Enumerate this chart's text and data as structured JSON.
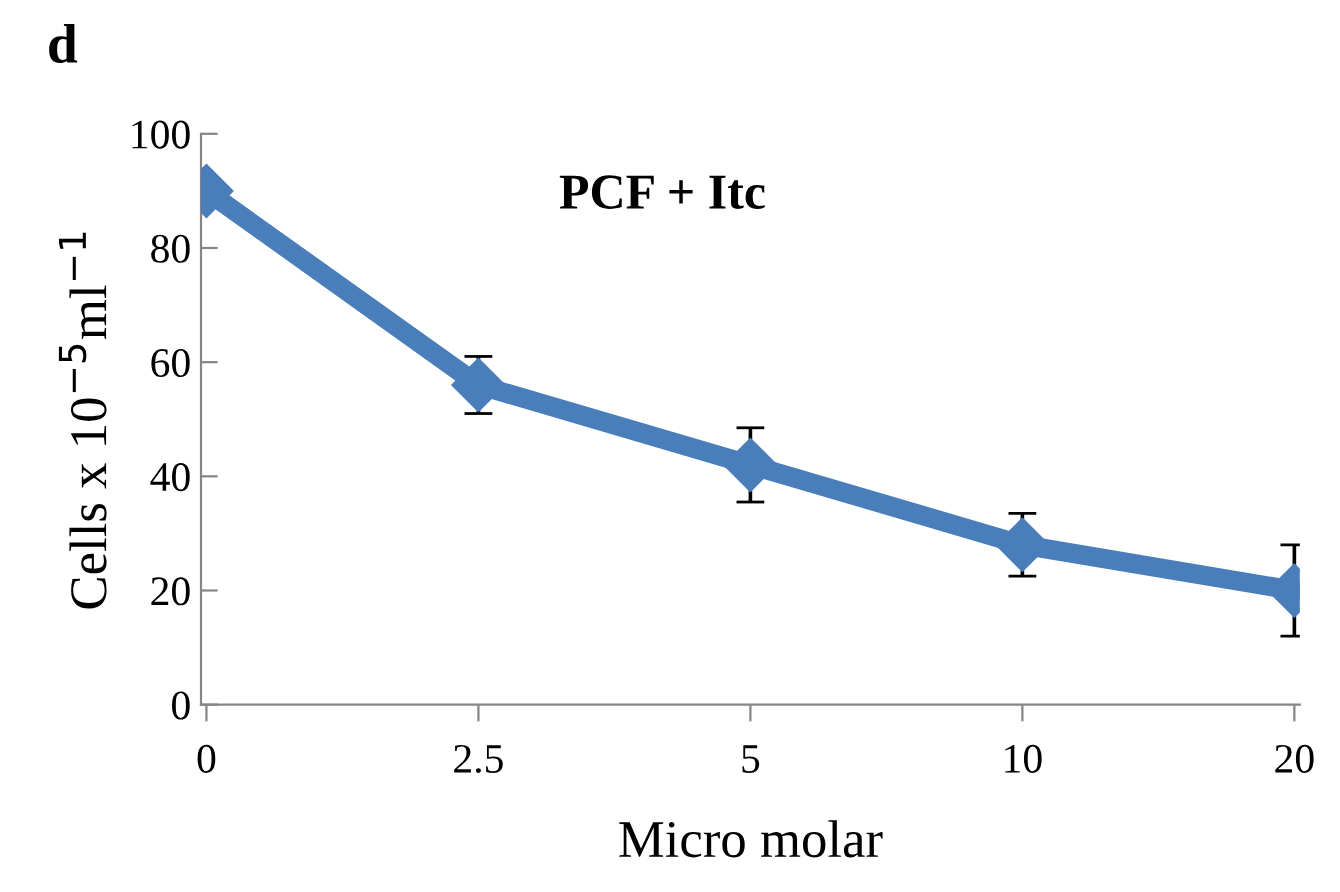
{
  "chart_data": {
    "type": "line",
    "title": "PCF + Itc",
    "xlabel": "Micro molar",
    "ylabel": "Cells x 10$^{−5}$ml$^{−1}$",
    "annotations": [
      "d"
    ],
    "categories": [
      "0",
      "2.5",
      "5",
      "10",
      "20"
    ],
    "series": [
      {
        "color": "#4a7ebb",
        "values": [
          90,
          56,
          42,
          28,
          20
        ],
        "errors": [
          null,
          5,
          6.5,
          5.5,
          8
        ]
      }
    ],
    "ylim": [
      0,
      100
    ],
    "yticks": [
      0,
      20,
      40,
      60,
      80,
      100
    ],
    "marker": "diamond",
    "line_style": "solid",
    "grid": false,
    "legend": false
  }
}
